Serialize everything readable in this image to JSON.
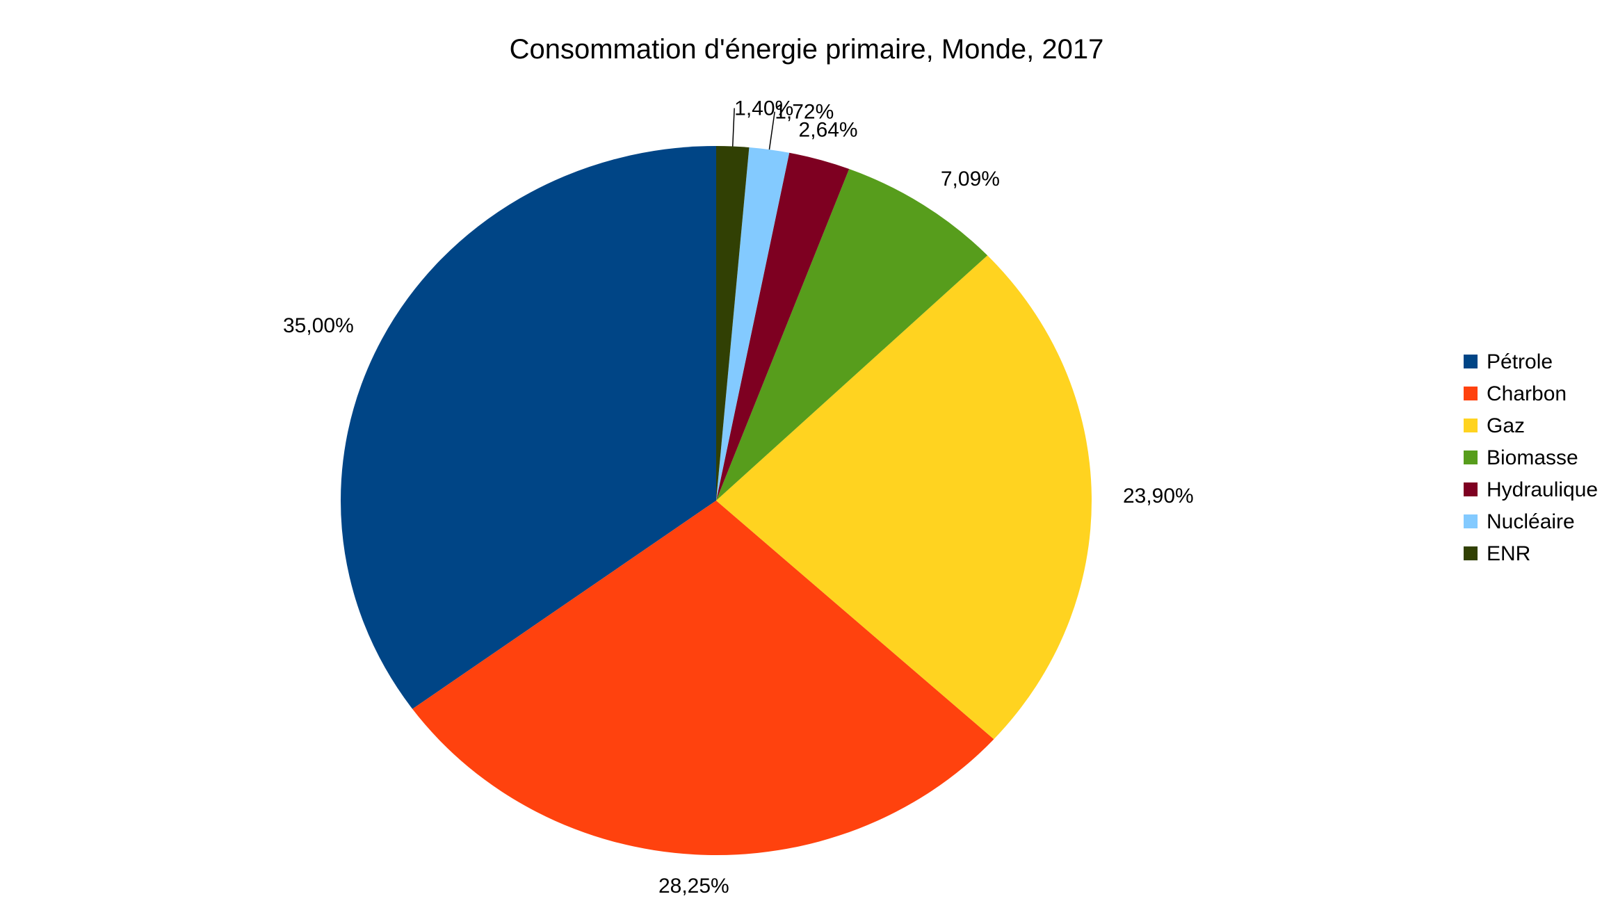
{
  "chart_data": {
    "type": "pie",
    "title": "Consommation d'énergie primaire, Monde, 2017",
    "start_angle": "top, clockwise",
    "legend_position": "right",
    "slices": [
      {
        "name": "Pétrole",
        "value": 35.0,
        "label": "35,00%",
        "color": "#004586"
      },
      {
        "name": "Charbon",
        "value": 28.25,
        "label": "28,25%",
        "color": "#FF420E"
      },
      {
        "name": "Gaz",
        "value": 23.9,
        "label": "23,90%",
        "color": "#FFD320"
      },
      {
        "name": "Biomasse",
        "value": 7.09,
        "label": "7,09%",
        "color": "#579D1C"
      },
      {
        "name": "Hydraulique",
        "value": 2.64,
        "label": "2,64%",
        "color": "#7E0021"
      },
      {
        "name": "Nucléaire",
        "value": 1.72,
        "label": "1,72%",
        "color": "#83CAFF"
      },
      {
        "name": "ENR",
        "value": 1.4,
        "label": "1,40%",
        "color": "#314004"
      }
    ]
  }
}
